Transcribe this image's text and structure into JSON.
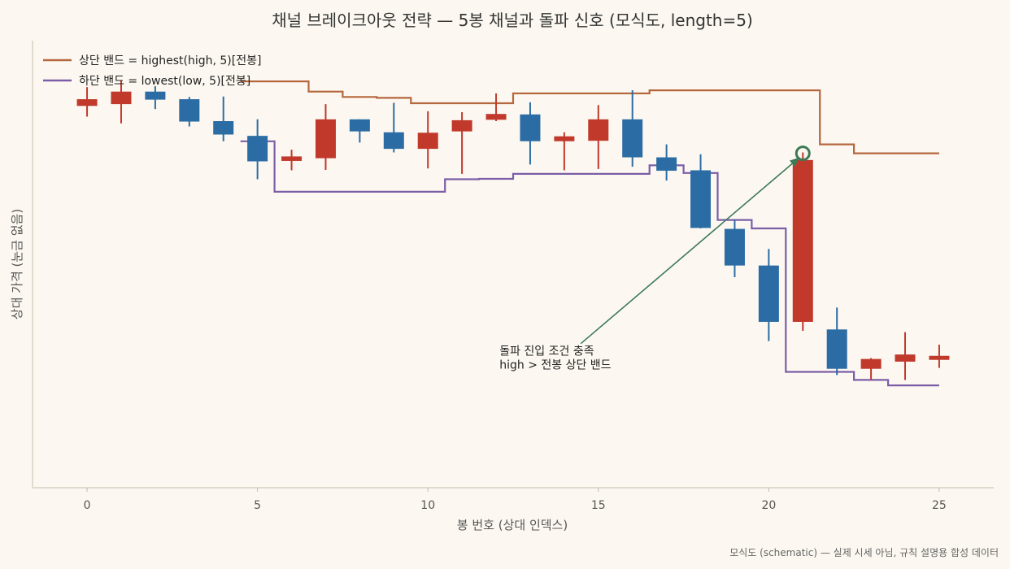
{
  "chart_data": {
    "type": "candlestick",
    "title": "채널 브레이크아웃 전략 — 5봉 채널과 돌파 신호 (모식도, length=5)",
    "xlabel": "봉 번호 (상대 인덱스)",
    "ylabel": "상대 가격 (눈금 없음)",
    "x_ticks": [
      0,
      5,
      10,
      15,
      20,
      25
    ],
    "xlim": [
      -1.6,
      26.6
    ],
    "ylim": [
      0,
      100
    ],
    "legend_position": "top-left",
    "colors": {
      "up": "#c0392b",
      "down": "#2c6ca4",
      "upper": "#b5673e",
      "lower": "#7b5ea7",
      "annotation": "#3d7a56"
    },
    "candles": [
      {
        "x": 0,
        "open": 85.4,
        "close": 86.9,
        "high": 89.6,
        "low": 83.0
      },
      {
        "x": 1,
        "open": 85.8,
        "close": 88.6,
        "high": 91.0,
        "low": 81.5
      },
      {
        "x": 2,
        "open": 88.6,
        "close": 86.8,
        "high": 89.8,
        "low": 84.7
      },
      {
        "x": 3,
        "open": 86.9,
        "close": 81.9,
        "high": 87.4,
        "low": 80.8
      },
      {
        "x": 4,
        "open": 82.0,
        "close": 79.0,
        "high": 87.5,
        "low": 77.5
      },
      {
        "x": 5,
        "open": 78.7,
        "close": 73.0,
        "high": 82.4,
        "low": 69.0
      },
      {
        "x": 6,
        "open": 73.1,
        "close": 74.1,
        "high": 75.6,
        "low": 71.0
      },
      {
        "x": 7,
        "open": 73.7,
        "close": 82.4,
        "high": 85.8,
        "low": 71.1
      },
      {
        "x": 8,
        "open": 82.4,
        "close": 79.7,
        "high": 82.4,
        "low": 77.2
      },
      {
        "x": 9,
        "open": 79.5,
        "close": 75.8,
        "high": 86.1,
        "low": 75.0
      },
      {
        "x": 10,
        "open": 75.8,
        "close": 79.4,
        "high": 84.2,
        "low": 71.4
      },
      {
        "x": 11,
        "open": 79.7,
        "close": 82.2,
        "high": 84.0,
        "low": 70.2
      },
      {
        "x": 12,
        "open": 82.3,
        "close": 83.6,
        "high": 88.2,
        "low": 82.0
      },
      {
        "x": 13,
        "open": 83.5,
        "close": 77.5,
        "high": 86.2,
        "low": 72.3
      },
      {
        "x": 14,
        "open": 77.5,
        "close": 78.6,
        "high": 79.5,
        "low": 71.0
      },
      {
        "x": 15,
        "open": 77.6,
        "close": 82.4,
        "high": 85.6,
        "low": 71.3
      },
      {
        "x": 16,
        "open": 82.4,
        "close": 73.9,
        "high": 88.9,
        "low": 71.8
      },
      {
        "x": 17,
        "open": 73.9,
        "close": 70.9,
        "high": 76.8,
        "low": 68.7
      },
      {
        "x": 18,
        "open": 71.0,
        "close": 58.1,
        "high": 74.6,
        "low": 58.0
      },
      {
        "x": 19,
        "open": 57.9,
        "close": 49.7,
        "high": 59.9,
        "low": 47.1
      },
      {
        "x": 20,
        "open": 49.7,
        "close": 37.1,
        "high": 53.4,
        "low": 32.8
      },
      {
        "x": 21,
        "open": 37.1,
        "close": 73.3,
        "high": 75.0,
        "low": 35.1
      },
      {
        "x": 22,
        "open": 35.4,
        "close": 26.6,
        "high": 40.3,
        "low": 25.2
      },
      {
        "x": 23,
        "open": 26.6,
        "close": 28.8,
        "high": 29.0,
        "low": 24.2
      },
      {
        "x": 24,
        "open": 28.2,
        "close": 29.8,
        "high": 34.8,
        "low": 24.1
      },
      {
        "x": 25,
        "open": 28.6,
        "close": 29.5,
        "high": 32.0,
        "low": 26.8
      }
    ],
    "series": [
      {
        "name": "상단 밴드 = highest(high, 5)[전봉]",
        "style": "step",
        "points": [
          [
            4.5,
            90.9
          ],
          [
            6.5,
            90.9
          ],
          [
            6.5,
            88.6
          ],
          [
            7.5,
            88.6
          ],
          [
            7.5,
            87.4
          ],
          [
            8.5,
            87.4
          ],
          [
            8.5,
            87.2
          ],
          [
            9.5,
            87.2
          ],
          [
            9.5,
            86.0
          ],
          [
            12.5,
            86.0
          ],
          [
            12.5,
            88.2
          ],
          [
            16.5,
            88.2
          ],
          [
            16.5,
            88.9
          ],
          [
            21.5,
            88.9
          ],
          [
            21.5,
            76.8
          ],
          [
            22.5,
            76.8
          ],
          [
            22.5,
            74.8
          ],
          [
            25.0,
            74.8
          ]
        ]
      },
      {
        "name": "하단 밴드 = lowest(low, 5)[전봉]",
        "style": "step",
        "points": [
          [
            4.5,
            77.5
          ],
          [
            5.5,
            77.5
          ],
          [
            5.5,
            66.2
          ],
          [
            10.5,
            66.2
          ],
          [
            10.5,
            69.0
          ],
          [
            11.5,
            69.0
          ],
          [
            11.5,
            69.1
          ],
          [
            12.5,
            69.1
          ],
          [
            12.5,
            70.2
          ],
          [
            16.5,
            70.2
          ],
          [
            16.5,
            72.1
          ],
          [
            17.5,
            72.1
          ],
          [
            17.5,
            70.4
          ],
          [
            18.5,
            70.4
          ],
          [
            18.5,
            59.9
          ],
          [
            19.5,
            59.9
          ],
          [
            19.5,
            58.0
          ],
          [
            20.5,
            58.0
          ],
          [
            20.5,
            25.9
          ],
          [
            22.5,
            25.9
          ],
          [
            22.5,
            24.1
          ],
          [
            23.5,
            24.1
          ],
          [
            23.5,
            22.9
          ],
          [
            25.0,
            22.9
          ]
        ]
      }
    ],
    "signal": {
      "x": 21,
      "y": 74.8
    },
    "annotation": {
      "lines": [
        "돌파 진입 조건 충족",
        "high > 전봉 상단 밴드"
      ],
      "x": 12.1,
      "y": 32.6
    },
    "footer": "모식도 (schematic) — 실제 시세 아님, 규칙 설명용 합성 데이터"
  }
}
